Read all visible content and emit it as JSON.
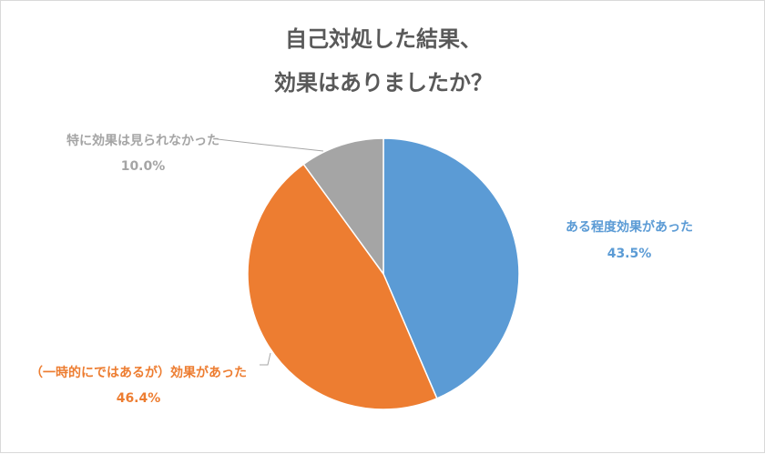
{
  "chart_data": {
    "type": "pie",
    "title": [
      "自己対処した結果、",
      "効果はありましたか？"
    ],
    "slices": [
      {
        "label": "ある程度効果があった",
        "value": 43.5,
        "value_label": "43.5%",
        "color": "#5b9bd5"
      },
      {
        "label": "（一時的にではあるが）効果があった",
        "value": 46.4,
        "value_label": "46.4%",
        "color": "#ed7d31"
      },
      {
        "label": "特に効果は見られなかった",
        "value": 10.0,
        "value_label": "10.0%",
        "color": "#a5a5a5"
      }
    ],
    "start_angle": "12 o'clock",
    "direction": "clockwise"
  }
}
